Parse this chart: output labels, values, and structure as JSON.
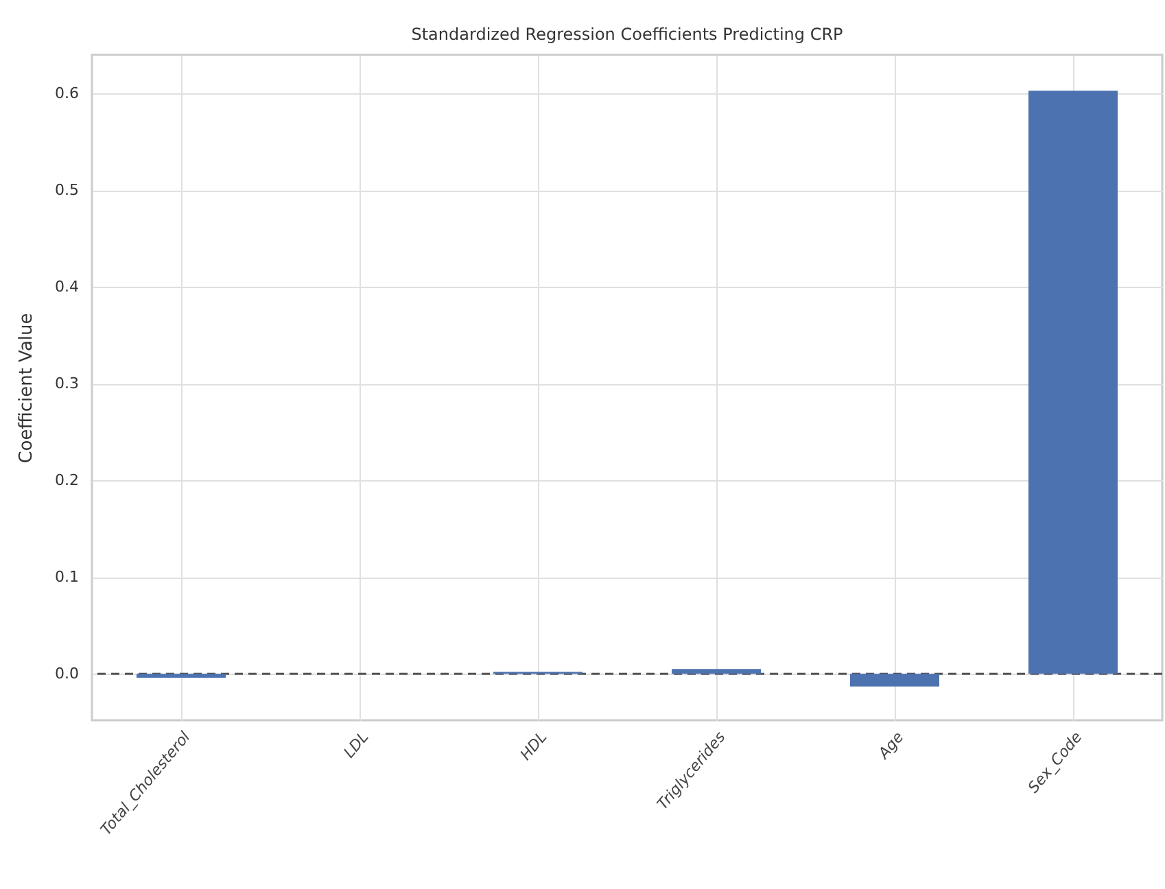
{
  "chart_data": {
    "type": "bar",
    "title": "Standardized Regression Coefficients Predicting CRP",
    "ylabel": "Coefficient Value",
    "categories": [
      "Total_Cholesterol",
      "LDL",
      "HDL",
      "Triglycerides",
      "Age",
      "Sex_Code"
    ],
    "values": [
      -0.004,
      0,
      0.002,
      0.005,
      -0.013,
      0.603
    ],
    "color": "#4c72b0",
    "ylim": [
      -0.048,
      0.64
    ],
    "yticks": [
      "0.0",
      0.1,
      0.2,
      0.3,
      0.4,
      0.5,
      0.6
    ],
    "grid": true,
    "ref_lines": [
      {
        "axis": "y",
        "value": 0,
        "line_style": "dashed",
        "color": "#555555"
      }
    ]
  }
}
